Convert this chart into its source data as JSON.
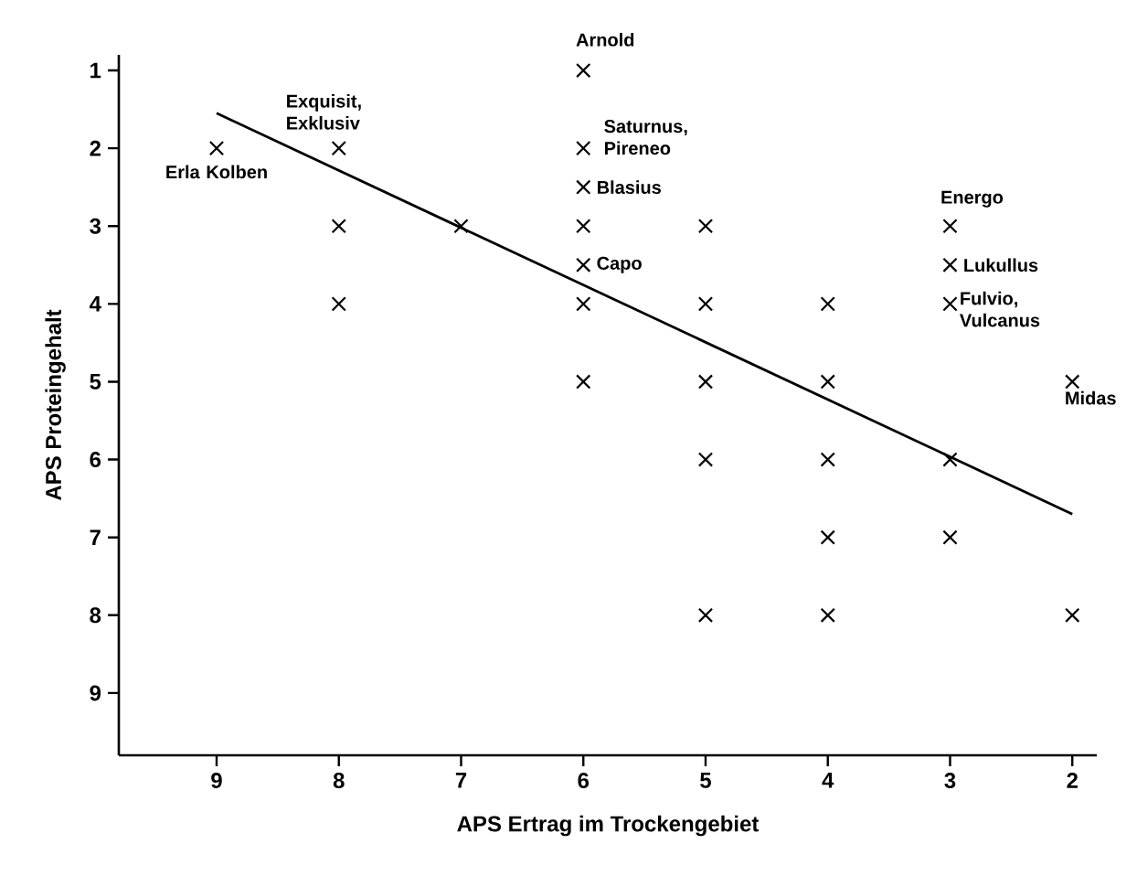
{
  "chart_data": {
    "type": "scatter",
    "xlabel": "APS Ertrag im Trockengebiet",
    "ylabel": "APS Proteingehalt",
    "xlim": [
      9.8,
      1.8
    ],
    "ylim": [
      9.8,
      0.8
    ],
    "xticks": [
      9,
      8,
      7,
      6,
      5,
      4,
      3,
      2
    ],
    "yticks": [
      1,
      2,
      3,
      4,
      5,
      6,
      7,
      8,
      9
    ],
    "series": [
      {
        "color": "#000000",
        "marker": "cross",
        "x": [
          9,
          8,
          8,
          8,
          7,
          6,
          6,
          6,
          6,
          6,
          6,
          6,
          5,
          5,
          5,
          5,
          5,
          4,
          4,
          4,
          4,
          4,
          3,
          3,
          3,
          3,
          3,
          2,
          2
        ],
        "values": [
          2,
          2,
          3,
          4,
          3,
          1,
          2,
          2.5,
          3,
          3.5,
          4,
          5,
          3,
          4,
          5,
          6,
          8,
          4,
          5,
          6,
          7,
          8,
          3,
          3.5,
          4,
          6,
          7,
          5,
          8
        ]
      },
      {
        "type": "line",
        "color": "#000000",
        "marker": "none",
        "line_style": "solid",
        "x": [
          9,
          2
        ],
        "values": [
          1.55,
          6.7
        ]
      }
    ],
    "annotations": [
      {
        "text": "Erla Kolben",
        "x": 9,
        "y": 2
      },
      {
        "text": "Exquisit, Exklusiv",
        "x": 8,
        "y": 2
      },
      {
        "text": "Arnold",
        "x": 6,
        "y": 1
      },
      {
        "text": "Saturnus, Pireneo",
        "x": 6,
        "y": 2
      },
      {
        "text": "Blasius",
        "x": 6,
        "y": 2.5
      },
      {
        "text": "Capo",
        "x": 6,
        "y": 3.5
      },
      {
        "text": "Energo",
        "x": 3,
        "y": 3
      },
      {
        "text": "Lukullus",
        "x": 3,
        "y": 3.5
      },
      {
        "text": "Fulvio, Vulcanus",
        "x": 3,
        "y": 4
      },
      {
        "text": "Midas",
        "x": 2,
        "y": 5
      }
    ]
  }
}
